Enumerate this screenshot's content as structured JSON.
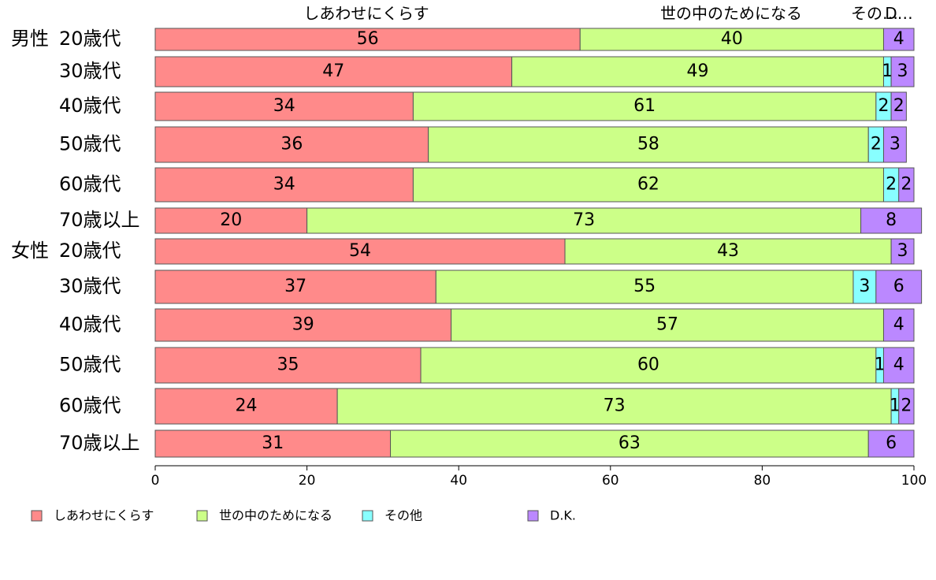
{
  "chart_data": {
    "type": "bar",
    "orientation": "horizontal",
    "stacked": true,
    "xlim": [
      0,
      100
    ],
    "x_ticks": [
      "0",
      "20",
      "40",
      "60",
      "80",
      "100"
    ],
    "grid": false,
    "legend_position": "bottom",
    "header_labels": [
      "しあわせにくらす",
      "世の中のためになる",
      "その…",
      "D…"
    ],
    "group_labels": [
      "男性",
      "女性"
    ],
    "categories": [
      "20歳代",
      "30歳代",
      "40歳代",
      "50歳代",
      "60歳代",
      "70歳以上",
      "20歳代",
      "30歳代",
      "40歳代",
      "50歳代",
      "60歳代",
      "70歳以上"
    ],
    "row_group": [
      0,
      -1,
      -1,
      -1,
      -1,
      -1,
      1,
      -1,
      -1,
      -1,
      -1,
      -1
    ],
    "series": [
      {
        "name": "しあわせにくらす",
        "color": "#FF8A8A",
        "values": [
          56,
          47,
          34,
          36,
          34,
          20,
          54,
          37,
          39,
          35,
          24,
          31
        ],
        "labels": [
          "56",
          "47",
          "34",
          "36",
          "34",
          "20",
          "54",
          "37",
          "39",
          "35",
          "24",
          "31"
        ]
      },
      {
        "name": "世の中のためになる",
        "color": "#CCFF88",
        "values": [
          40,
          49,
          61,
          58,
          62,
          73,
          43,
          55,
          57,
          60,
          73,
          63
        ],
        "labels": [
          "40",
          "49",
          "61",
          "58",
          "62",
          "73",
          "43",
          "55",
          "57",
          "60",
          "73",
          "63"
        ]
      },
      {
        "name": "その他",
        "color": "#88FFFF",
        "values": [
          0,
          1,
          2,
          2,
          2,
          0,
          0,
          3,
          0,
          1,
          1,
          0
        ],
        "labels": [
          "",
          "1",
          "2",
          "2",
          "2",
          "",
          "",
          "3",
          "",
          "1",
          "1",
          ""
        ]
      },
      {
        "name": "D.K.",
        "color": "#BB88FF",
        "values": [
          4,
          3,
          2,
          3,
          2,
          8,
          3,
          6,
          4,
          4,
          2,
          6
        ],
        "labels": [
          "4",
          "3",
          "2",
          "3",
          "2",
          "8",
          "3",
          "6",
          "4",
          "4",
          "2",
          "6"
        ]
      }
    ]
  }
}
